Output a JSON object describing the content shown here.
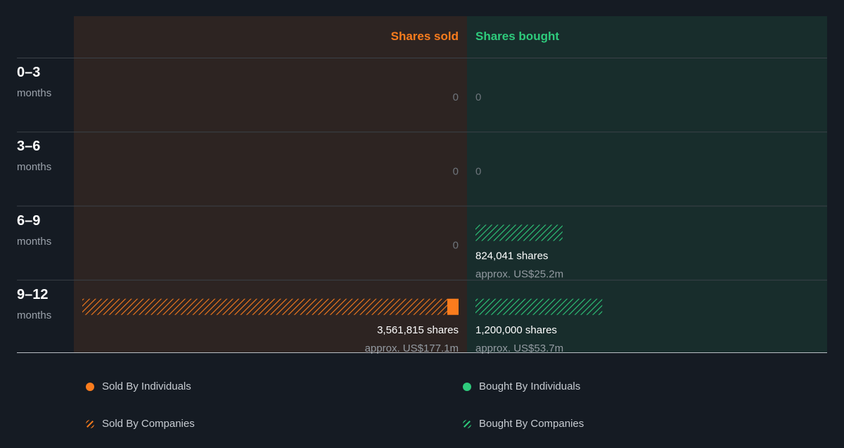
{
  "chart_data": {
    "type": "bar",
    "columns": {
      "sold_title": "Shares sold",
      "bought_title": "Shares bought"
    },
    "periods": [
      {
        "range": "0–3",
        "unit": "months"
      },
      {
        "range": "3–6",
        "unit": "months"
      },
      {
        "range": "6–9",
        "unit": "months"
      },
      {
        "range": "9–12",
        "unit": "months"
      }
    ],
    "sold": [
      {
        "shares": 0,
        "label": "0",
        "approx": ""
      },
      {
        "shares": 0,
        "label": "0",
        "approx": ""
      },
      {
        "shares": 0,
        "label": "0",
        "approx": ""
      },
      {
        "shares": 3561815,
        "label": "3,561,815 shares",
        "approx": "approx. US$177.1m",
        "individuals_fraction": 0.03
      }
    ],
    "bought": [
      {
        "shares": 0,
        "label": "0",
        "approx": ""
      },
      {
        "shares": 0,
        "label": "0",
        "approx": ""
      },
      {
        "shares": 824041,
        "label": "824,041 shares",
        "approx": "approx. US$25.2m",
        "individuals_fraction": 0
      },
      {
        "shares": 1200000,
        "label": "1,200,000 shares",
        "approx": "approx. US$53.7m",
        "individuals_fraction": 0
      }
    ],
    "scale_max_shares": 3561815
  },
  "legend": {
    "sold_individuals": "Sold By Individuals",
    "sold_companies": "Sold By Companies",
    "bought_individuals": "Bought By Individuals",
    "bought_companies": "Bought By Companies"
  },
  "colors": {
    "page_bg": "#151b23",
    "sold_bg": "#2d2422",
    "bought_bg": "#182d2c",
    "sold": "#fa7c1d",
    "bought": "#2ecb7c",
    "zero_text": "#6e757c",
    "value_text": "#ffffff",
    "approx_text": "#939aa1",
    "row_divider": "#3b4148",
    "baseline": "#b9bec4"
  }
}
